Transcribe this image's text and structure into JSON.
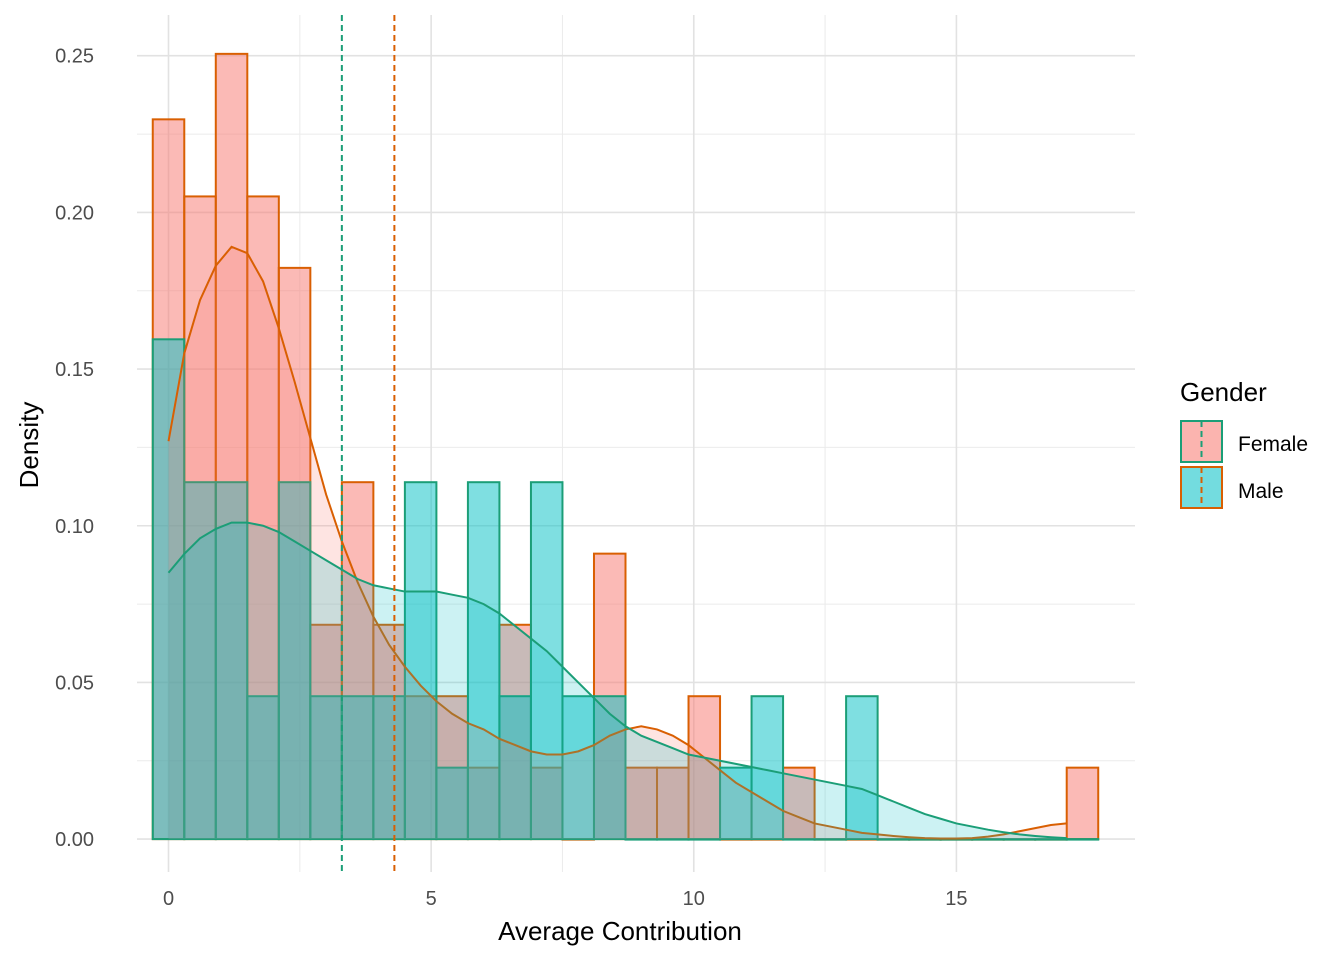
{
  "chart_data": {
    "type": "histogram-density",
    "xlabel": "Average Contribution",
    "ylabel": "Density",
    "xlim": [
      -0.6,
      18.4
    ],
    "ylim": [
      -0.0105,
      0.263
    ],
    "x_ticks": [
      0,
      5,
      10,
      15
    ],
    "x_tick_labels": [
      "0",
      "5",
      "10",
      "15"
    ],
    "x_minor_ticks": [
      2.5,
      7.5,
      12.5
    ],
    "y_ticks": [
      0.0,
      0.05,
      0.1,
      0.15,
      0.2,
      0.25
    ],
    "y_tick_labels": [
      "0.00",
      "0.05",
      "0.10",
      "0.15",
      "0.20",
      "0.25"
    ],
    "y_minor_ticks": [
      0.025,
      0.075,
      0.125,
      0.175,
      0.225
    ],
    "grid": true,
    "bin_width": 0.6,
    "bin_centers": [
      0,
      0.6,
      1.2,
      1.8,
      2.4,
      3.0,
      3.6,
      4.2,
      4.8,
      5.4,
      6.0,
      6.6,
      7.2,
      7.8,
      8.4,
      9.0,
      9.6,
      10.2,
      10.8,
      11.4,
      12.0,
      12.6,
      13.2,
      13.8,
      14.4,
      15.0,
      15.6,
      16.2,
      16.8,
      17.4
    ],
    "series": [
      {
        "name": "Female",
        "fill": "#F8766D",
        "outline": "#D95F02",
        "histogram": [
          0.2297,
          0.2051,
          0.2506,
          0.2051,
          0.1823,
          0.0684,
          0.1139,
          0.0684,
          0.0456,
          0.0456,
          0.0228,
          0.0684,
          0.0228,
          0.0,
          0.0911,
          0.0228,
          0.0228,
          0.0456,
          0.0,
          0.0,
          0.0228,
          0.0,
          0.0,
          0.0,
          0.0,
          0.0,
          0.0,
          0.0,
          0.0,
          0.0228
        ],
        "density_x": [
          0,
          0.3,
          0.6,
          0.9,
          1.2,
          1.5,
          1.8,
          2.1,
          2.4,
          2.7,
          3.0,
          3.3,
          3.6,
          3.9,
          4.2,
          4.5,
          4.8,
          5.1,
          5.4,
          5.7,
          6.0,
          6.3,
          6.6,
          6.9,
          7.2,
          7.5,
          7.8,
          8.1,
          8.4,
          8.7,
          9.0,
          9.3,
          9.6,
          9.9,
          10.2,
          10.5,
          10.8,
          11.1,
          11.4,
          11.7,
          12.0,
          12.3,
          12.6,
          12.9,
          13.2,
          13.5,
          13.8,
          14.1,
          14.4,
          14.7,
          15.0,
          15.3,
          15.6,
          15.9,
          16.2,
          16.5,
          16.8,
          17.1
        ],
        "density_y": [
          0.127,
          0.155,
          0.172,
          0.183,
          0.189,
          0.187,
          0.178,
          0.163,
          0.146,
          0.128,
          0.11,
          0.095,
          0.082,
          0.071,
          0.062,
          0.055,
          0.049,
          0.044,
          0.04,
          0.037,
          0.035,
          0.032,
          0.03,
          0.028,
          0.027,
          0.027,
          0.028,
          0.03,
          0.033,
          0.035,
          0.036,
          0.035,
          0.033,
          0.03,
          0.026,
          0.022,
          0.018,
          0.015,
          0.012,
          0.009,
          0.007,
          0.005,
          0.004,
          0.003,
          0.002,
          0.0015,
          0.001,
          0.0006,
          0.0003,
          0.0002,
          0.0002,
          0.0003,
          0.0008,
          0.0015,
          0.0025,
          0.0035,
          0.0045,
          0.005
        ],
        "mean": 3.3,
        "mean_line_color": "#1B9E77"
      },
      {
        "name": "Male",
        "fill": "#00BFC4",
        "outline": "#1B9E77",
        "histogram": [
          0.1595,
          0.1139,
          0.1139,
          0.0456,
          0.1139,
          0.0456,
          0.0456,
          0.0456,
          0.1139,
          0.0228,
          0.1139,
          0.0456,
          0.1139,
          0.0456,
          0.0456,
          0.0,
          0.0,
          0.0,
          0.0228,
          0.0456,
          0.0,
          0.0,
          0.0456,
          0.0,
          0.0,
          0.0,
          0.0,
          0.0,
          0.0,
          0.0
        ],
        "density_x": [
          0,
          0.3,
          0.6,
          0.9,
          1.2,
          1.5,
          1.8,
          2.1,
          2.4,
          2.7,
          3.0,
          3.3,
          3.6,
          3.9,
          4.2,
          4.5,
          4.8,
          5.1,
          5.4,
          5.7,
          6.0,
          6.3,
          6.6,
          6.9,
          7.2,
          7.5,
          7.8,
          8.1,
          8.4,
          8.7,
          9.0,
          9.3,
          9.6,
          9.9,
          10.2,
          10.5,
          10.8,
          11.1,
          11.4,
          11.7,
          12.0,
          12.3,
          12.6,
          12.9,
          13.2,
          13.5,
          13.8,
          14.1,
          14.4,
          14.7,
          15.0,
          15.3,
          15.6,
          15.9,
          16.2,
          16.5,
          16.8,
          17.1
        ],
        "density_y": [
          0.085,
          0.091,
          0.096,
          0.099,
          0.101,
          0.101,
          0.1,
          0.098,
          0.095,
          0.092,
          0.089,
          0.086,
          0.083,
          0.081,
          0.08,
          0.079,
          0.079,
          0.079,
          0.078,
          0.077,
          0.075,
          0.072,
          0.068,
          0.064,
          0.06,
          0.055,
          0.05,
          0.045,
          0.04,
          0.036,
          0.033,
          0.031,
          0.029,
          0.027,
          0.026,
          0.025,
          0.024,
          0.023,
          0.022,
          0.021,
          0.02,
          0.019,
          0.018,
          0.017,
          0.016,
          0.014,
          0.012,
          0.01,
          0.008,
          0.0065,
          0.005,
          0.004,
          0.003,
          0.0022,
          0.0015,
          0.001,
          0.0006,
          0.0003
        ],
        "mean": 4.3,
        "mean_line_color": "#D95F02"
      }
    ],
    "legend": {
      "title": "Gender",
      "position": "right",
      "entries": [
        "Female",
        "Male"
      ]
    }
  }
}
